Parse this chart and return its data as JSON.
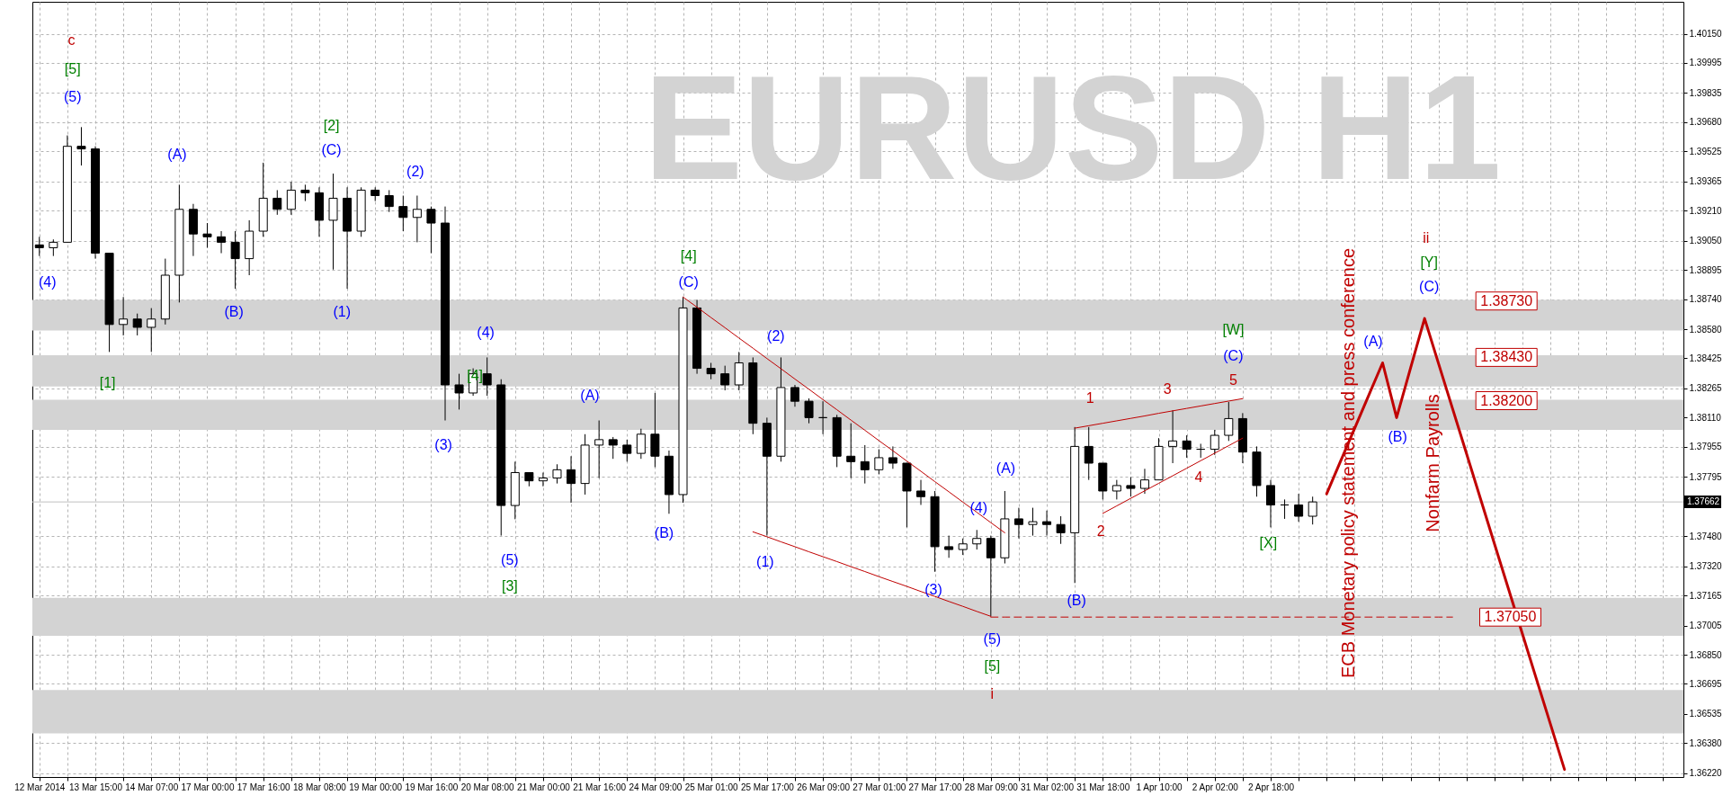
{
  "chart_data": {
    "type": "candlestick",
    "title": "EURUSD H1",
    "color": "#000000",
    "grid": true,
    "categories": [
      "12 Mar 2014",
      null,
      null,
      null,
      "13 Mar 15:00",
      null,
      null,
      null,
      "14 Mar 07:00",
      null,
      null,
      null,
      "17 Mar 00:00",
      null,
      null,
      null,
      "17 Mar 16:00",
      null,
      null,
      null,
      "18 Mar 08:00",
      null,
      null,
      null,
      "19 Mar 00:00",
      null,
      null,
      null,
      "19 Mar 16:00",
      null,
      null,
      null,
      "20 Mar 08:00",
      null,
      null,
      null,
      "21 Mar 00:00",
      null,
      null,
      null,
      "21 Mar 16:00",
      null,
      null,
      null,
      "24 Mar 09:00",
      null,
      null,
      null,
      "25 Mar 01:00",
      null,
      null,
      null,
      "25 Mar 17:00",
      null,
      null,
      null,
      "26 Mar 09:00",
      null,
      null,
      null,
      "27 Mar 01:00",
      null,
      null,
      null,
      "27 Mar 17:00",
      null,
      null,
      null,
      "28 Mar 09:00",
      null,
      null,
      null,
      "31 Mar 02:00",
      null,
      null,
      null,
      "31 Mar 18:00",
      null,
      null,
      null,
      "1 Apr 10:00",
      null,
      null,
      null,
      "2 Apr 02:00",
      null,
      null,
      null,
      "2 Apr 18:00",
      null,
      null,
      null,
      null,
      null,
      null,
      null,
      null,
      null,
      null,
      null,
      null,
      null,
      null,
      null,
      null,
      null,
      null,
      null,
      null,
      null,
      null,
      null,
      null,
      null,
      null,
      null,
      null,
      null
    ],
    "ohlc": [
      [
        1.39028,
        1.39071,
        1.38969,
        1.39013
      ],
      [
        1.39013,
        1.39057,
        1.38969,
        1.39042
      ],
      [
        1.39042,
        1.3961,
        1.39042,
        1.39552
      ],
      [
        1.39552,
        1.39654,
        1.3945,
        1.39538
      ],
      [
        1.39538,
        1.39552,
        1.38955,
        1.38984
      ],
      [
        1.38984,
        1.38984,
        1.38459,
        1.38605
      ],
      [
        1.38605,
        1.38751,
        1.38547,
        1.38634
      ],
      [
        1.38634,
        1.38663,
        1.38547,
        1.3859
      ],
      [
        1.3859,
        1.38692,
        1.38459,
        1.38634
      ],
      [
        1.38634,
        1.38955,
        1.38605,
        1.38867
      ],
      [
        1.38867,
        1.39348,
        1.38722,
        1.39217
      ],
      [
        1.39217,
        1.39246,
        1.38969,
        1.39086
      ],
      [
        1.39086,
        1.39144,
        1.39013,
        1.39071
      ],
      [
        1.39071,
        1.39101,
        1.38984,
        1.39042
      ],
      [
        1.39042,
        1.39101,
        1.38795,
        1.38955
      ],
      [
        1.38955,
        1.39159,
        1.38867,
        1.39101
      ],
      [
        1.39101,
        1.39465,
        1.39071,
        1.39276
      ],
      [
        1.39276,
        1.39319,
        1.39188,
        1.39217
      ],
      [
        1.39217,
        1.39363,
        1.39188,
        1.39319
      ],
      [
        1.39319,
        1.39348,
        1.39261,
        1.39305
      ],
      [
        1.39305,
        1.39334,
        1.39071,
        1.39159
      ],
      [
        1.39159,
        1.39407,
        1.38897,
        1.39276
      ],
      [
        1.39276,
        1.39334,
        1.38795,
        1.39101
      ],
      [
        1.39101,
        1.39334,
        1.39071,
        1.39319
      ],
      [
        1.39319,
        1.39334,
        1.39261,
        1.3929
      ],
      [
        1.3929,
        1.39319,
        1.39203,
        1.39232
      ],
      [
        1.39232,
        1.3929,
        1.39101,
        1.39174
      ],
      [
        1.39174,
        1.3929,
        1.39042,
        1.39217
      ],
      [
        1.39217,
        1.39232,
        1.38984,
        1.39144
      ],
      [
        1.39144,
        1.39232,
        1.38095,
        1.38284
      ],
      [
        1.38284,
        1.38343,
        1.38153,
        1.38241
      ],
      [
        1.38241,
        1.38372,
        1.38226,
        1.38343
      ],
      [
        1.38343,
        1.3843,
        1.38226,
        1.38284
      ],
      [
        1.38284,
        1.38314,
        1.37483,
        1.37643
      ],
      [
        1.37643,
        1.37876,
        1.3757,
        1.37818
      ],
      [
        1.37818,
        1.37818,
        1.37745,
        1.37774
      ],
      [
        1.37774,
        1.37818,
        1.37745,
        1.37789
      ],
      [
        1.37789,
        1.37862,
        1.3776,
        1.37833
      ],
      [
        1.37833,
        1.37905,
        1.37658,
        1.3776
      ],
      [
        1.3776,
        1.38022,
        1.37701,
        1.37964
      ],
      [
        1.37964,
        1.38095,
        1.37789,
        1.37993
      ],
      [
        1.37993,
        1.38007,
        1.37891,
        1.37964
      ],
      [
        1.37964,
        1.37993,
        1.37876,
        1.3792
      ],
      [
        1.3792,
        1.38051,
        1.37891,
        1.38022
      ],
      [
        1.38022,
        1.38241,
        1.37847,
        1.37905
      ],
      [
        1.37905,
        1.37935,
        1.37599,
        1.37701
      ],
      [
        1.37701,
        1.38751,
        1.37658,
        1.38693
      ],
      [
        1.38693,
        1.38736,
        1.38343,
        1.38372
      ],
      [
        1.38372,
        1.38401,
        1.38314,
        1.38343
      ],
      [
        1.38343,
        1.38386,
        1.38255,
        1.38284
      ],
      [
        1.38284,
        1.38459,
        1.38255,
        1.38401
      ],
      [
        1.38401,
        1.3843,
        1.38022,
        1.3808
      ],
      [
        1.3808,
        1.3811,
        1.37483,
        1.37905
      ],
      [
        1.37905,
        1.3843,
        1.37876,
        1.3827
      ],
      [
        1.3827,
        1.38284,
        1.38168,
        1.38197
      ],
      [
        1.38197,
        1.38212,
        1.3808,
        1.3811
      ],
      [
        1.3811,
        1.38197,
        1.38022,
        1.3811
      ],
      [
        1.3811,
        1.38125,
        1.37847,
        1.37905
      ],
      [
        1.37905,
        1.3808,
        1.37789,
        1.37876
      ],
      [
        1.37876,
        1.37964,
        1.3776,
        1.37833
      ],
      [
        1.37833,
        1.37942,
        1.37809,
        1.37897
      ],
      [
        1.37897,
        1.37957,
        1.37838,
        1.37868
      ],
      [
        1.37868,
        1.37868,
        1.37527,
        1.3772
      ],
      [
        1.3772,
        1.37779,
        1.37646,
        1.3769
      ],
      [
        1.3769,
        1.3772,
        1.37291,
        1.37424
      ],
      [
        1.37424,
        1.37483,
        1.37365,
        1.37409
      ],
      [
        1.37409,
        1.37468,
        1.3738,
        1.37439
      ],
      [
        1.37439,
        1.37513,
        1.37409,
        1.37468
      ],
      [
        1.37468,
        1.37483,
        1.37054,
        1.37365
      ],
      [
        1.37365,
        1.3772,
        1.37335,
        1.37572
      ],
      [
        1.37572,
        1.37631,
        1.37468,
        1.37542
      ],
      [
        1.37542,
        1.37631,
        1.37483,
        1.37557
      ],
      [
        1.37557,
        1.37616,
        1.37483,
        1.37542
      ],
      [
        1.37542,
        1.37586,
        1.37439,
        1.37498
      ],
      [
        1.37498,
        1.3806,
        1.37231,
        1.37957
      ],
      [
        1.37957,
        1.3806,
        1.37779,
        1.37868
      ],
      [
        1.37868,
        1.37868,
        1.37675,
        1.3772
      ],
      [
        1.3772,
        1.37779,
        1.37675,
        1.37749
      ],
      [
        1.37749,
        1.37794,
        1.3769,
        1.37734
      ],
      [
        1.37734,
        1.37838,
        1.37705,
        1.37779
      ],
      [
        1.37779,
        1.38001,
        1.37779,
        1.37957
      ],
      [
        1.37957,
        1.38149,
        1.37868,
        1.37986
      ],
      [
        1.37986,
        1.38016,
        1.37897,
        1.37942
      ],
      [
        1.37942,
        1.37971,
        1.37897,
        1.37942
      ],
      [
        1.37942,
        1.38045,
        1.37912,
        1.38016
      ],
      [
        1.38016,
        1.38193,
        1.37986,
        1.38105
      ],
      [
        1.38105,
        1.38134,
        1.37868,
        1.37927
      ],
      [
        1.37927,
        1.37957,
        1.3769,
        1.37749
      ],
      [
        1.37749,
        1.37779,
        1.37527,
        1.37646
      ],
      [
        1.37646,
        1.37675,
        1.37572,
        1.37646
      ],
      [
        1.37646,
        1.37705,
        1.37557,
        1.37586
      ],
      [
        1.37586,
        1.3769,
        1.37542,
        1.37662
      ],
      null,
      null,
      null,
      null,
      null,
      null,
      null,
      null,
      null,
      null,
      null,
      null,
      null,
      null,
      null,
      null,
      null,
      null,
      null,
      null,
      null,
      null,
      null,
      null,
      null,
      null
    ],
    "series": [
      {
        "type": "line",
        "color": "#c00000",
        "values": [
          null,
          null,
          null,
          null,
          null,
          null,
          null,
          null,
          null,
          null,
          null,
          null,
          null,
          null,
          null,
          null,
          null,
          null,
          null,
          null,
          null,
          null,
          null,
          null,
          null,
          null,
          null,
          null,
          null,
          null,
          null,
          null,
          null,
          null,
          null,
          null,
          null,
          null,
          null,
          null,
          null,
          null,
          null,
          null,
          null,
          null,
          null,
          null,
          null,
          null,
          null,
          null,
          null,
          null,
          null,
          null,
          null,
          null,
          null,
          null,
          null,
          null,
          null,
          null,
          null,
          null,
          null,
          null,
          null,
          null,
          null,
          null,
          null,
          null,
          null,
          null,
          null,
          null,
          null,
          null,
          null,
          null,
          null,
          null,
          null,
          null,
          null,
          null,
          null,
          null,
          null,
          null,
          1.37705,
          1.37879,
          1.38053,
          1.38227,
          1.38401,
          1.3811,
          1.38374,
          1.38637,
          1.38397,
          1.38158,
          1.37918,
          1.37678,
          1.37438,
          1.37199,
          1.36959,
          1.36719,
          1.3648,
          1.3624,
          null,
          null,
          null,
          null,
          null,
          null,
          null,
          null
        ]
      },
      {
        "type": "line",
        "color": "#c00000",
        "values": [
          null,
          null,
          null,
          null,
          null,
          null,
          null,
          null,
          null,
          null,
          null,
          null,
          null,
          null,
          null,
          null,
          null,
          null,
          null,
          null,
          null,
          null,
          null,
          null,
          null,
          null,
          null,
          null,
          null,
          null,
          null,
          null,
          null,
          null,
          null,
          null,
          null,
          null,
          null,
          null,
          null,
          null,
          null,
          null,
          null,
          null,
          1.38751,
          1.38697,
          1.38642,
          1.38588,
          1.38533,
          1.38479,
          1.38424,
          1.3837,
          1.38315,
          1.38261,
          1.38206,
          1.38152,
          1.38097,
          1.38043,
          1.37988,
          1.37934,
          1.37879,
          1.37825,
          1.3777,
          1.37716,
          1.37661,
          1.37607,
          1.37552,
          1.37498,
          null,
          null,
          null,
          null,
          null,
          null,
          null,
          null,
          null,
          null,
          null,
          null,
          null,
          null,
          null,
          null,
          null,
          null,
          null,
          null,
          null,
          null,
          null,
          null,
          null,
          null,
          null,
          null,
          null,
          null,
          null,
          null,
          null,
          null,
          null,
          null,
          null,
          null,
          null,
          null,
          null,
          null,
          null,
          null,
          null,
          null,
          null,
          null
        ]
      },
      {
        "type": "line",
        "color": "#c00000",
        "values": [
          null,
          null,
          null,
          null,
          null,
          null,
          null,
          null,
          null,
          null,
          null,
          null,
          null,
          null,
          null,
          null,
          null,
          null,
          null,
          null,
          null,
          null,
          null,
          null,
          null,
          null,
          null,
          null,
          null,
          null,
          null,
          null,
          null,
          null,
          null,
          null,
          null,
          null,
          null,
          null,
          null,
          null,
          null,
          null,
          null,
          null,
          null,
          null,
          null,
          null,
          null,
          1.37503,
          1.37477,
          1.3745,
          1.37424,
          1.37397,
          1.37371,
          1.37345,
          1.37318,
          1.37292,
          1.37265,
          1.37239,
          1.37213,
          1.37186,
          1.3716,
          1.37133,
          1.37107,
          1.3708,
          1.37054,
          null,
          null,
          null,
          null,
          null,
          null,
          null,
          null,
          null,
          null,
          null,
          null,
          null,
          null,
          null,
          null,
          null,
          null,
          null,
          null,
          null,
          null,
          null,
          null,
          null,
          null,
          null,
          null,
          null,
          null,
          null,
          null,
          null,
          null,
          null,
          null,
          null,
          null,
          null,
          null,
          null,
          null,
          null,
          null,
          null,
          null,
          null,
          null,
          null
        ]
      },
      {
        "type": "line",
        "color": "#c00000",
        "values": [
          null,
          null,
          null,
          null,
          null,
          null,
          null,
          null,
          null,
          null,
          null,
          null,
          null,
          null,
          null,
          null,
          null,
          null,
          null,
          null,
          null,
          null,
          null,
          null,
          null,
          null,
          null,
          null,
          null,
          null,
          null,
          null,
          null,
          null,
          null,
          null,
          null,
          null,
          null,
          null,
          null,
          null,
          null,
          null,
          null,
          null,
          null,
          null,
          null,
          null,
          null,
          null,
          null,
          null,
          null,
          null,
          null,
          null,
          null,
          null,
          null,
          null,
          null,
          null,
          null,
          null,
          null,
          null,
          null,
          null,
          null,
          null,
          null,
          null,
          1.38054,
          1.38067,
          1.3808,
          1.38093,
          1.38106,
          1.38119,
          1.38133,
          1.38146,
          1.38159,
          1.38172,
          1.38185,
          1.38198,
          1.38211,
          null,
          null,
          null,
          null,
          null,
          null,
          null,
          null,
          null,
          null,
          null,
          null,
          null,
          null,
          null,
          null,
          null,
          null,
          null,
          null,
          null,
          null,
          null,
          null,
          null,
          null,
          null,
          null,
          null,
          null,
          null
        ]
      },
      {
        "type": "line",
        "color": "#c00000",
        "values": [
          null,
          null,
          null,
          null,
          null,
          null,
          null,
          null,
          null,
          null,
          null,
          null,
          null,
          null,
          null,
          null,
          null,
          null,
          null,
          null,
          null,
          null,
          null,
          null,
          null,
          null,
          null,
          null,
          null,
          null,
          null,
          null,
          null,
          null,
          null,
          null,
          null,
          null,
          null,
          null,
          null,
          null,
          null,
          null,
          null,
          null,
          null,
          null,
          null,
          null,
          null,
          null,
          null,
          null,
          null,
          null,
          null,
          null,
          null,
          null,
          null,
          null,
          null,
          null,
          null,
          null,
          null,
          null,
          null,
          null,
          null,
          null,
          null,
          null,
          null,
          null,
          1.37601,
          1.37641,
          1.37681,
          1.37721,
          1.37761,
          1.37801,
          1.37841,
          1.37881,
          1.37921,
          1.37961,
          1.38001,
          null,
          null,
          null,
          null,
          null,
          null,
          null,
          null,
          null,
          null,
          null,
          null,
          null,
          null,
          null,
          null,
          null,
          null,
          null,
          null,
          null,
          null,
          null,
          null,
          null,
          null,
          null,
          null,
          null,
          null,
          null
        ]
      },
      {
        "type": "line",
        "color": "#c00000",
        "line_style": "dashed",
        "values": [
          null,
          null,
          null,
          null,
          null,
          null,
          null,
          null,
          null,
          null,
          null,
          null,
          null,
          null,
          null,
          null,
          null,
          null,
          null,
          null,
          null,
          null,
          null,
          null,
          null,
          null,
          null,
          null,
          null,
          null,
          null,
          null,
          null,
          null,
          null,
          null,
          null,
          null,
          null,
          null,
          null,
          null,
          null,
          null,
          null,
          null,
          null,
          null,
          null,
          null,
          null,
          null,
          null,
          null,
          null,
          null,
          null,
          null,
          null,
          null,
          null,
          null,
          null,
          null,
          null,
          null,
          null,
          null,
          1.3705,
          1.3705,
          1.3705,
          1.3705,
          1.3705,
          1.3705,
          1.3705,
          1.3705,
          1.3705,
          1.3705,
          1.3705,
          1.3705,
          1.3705,
          1.3705,
          1.3705,
          1.3705,
          1.3705,
          1.3705,
          1.3705,
          1.3705,
          1.3705,
          1.3705,
          1.3705,
          1.3705,
          1.3705,
          1.3705,
          1.3705,
          1.3705,
          1.3705,
          1.3705,
          1.3705,
          1.3705,
          1.3705,
          1.3705,
          null,
          null,
          null,
          null,
          null,
          null,
          null,
          null,
          null,
          null,
          null,
          null,
          null,
          null,
          null,
          null
        ]
      }
    ],
    "bands": [
      {
        "axis": "y",
        "from": 1.38573,
        "to": 1.38735,
        "color": "#d3d3d3"
      },
      {
        "axis": "y",
        "from": 1.38276,
        "to": 1.38442,
        "color": "#d3d3d3"
      },
      {
        "axis": "y",
        "from": 1.38045,
        "to": 1.38205,
        "color": "#d3d3d3"
      },
      {
        "axis": "y",
        "from": 1.3695,
        "to": 1.37152,
        "color": "#d3d3d3"
      },
      {
        "axis": "y",
        "from": 1.36432,
        "to": 1.36663,
        "color": "#d3d3d3"
      }
    ],
    "ref_lines": [
      {
        "axis": "y",
        "value": 1.37662,
        "label": "1.37662",
        "color": "#c0c0c0"
      }
    ],
    "annotations": [
      "c",
      "[5]",
      "(5)",
      "(4)",
      "(A)",
      "[1]",
      "(B)",
      "[2]",
      "(C)",
      "(1)",
      "(2)",
      "(4)",
      "[4]",
      "(3)",
      "(5)",
      "[3]",
      "(A)",
      "(B)",
      "[4]",
      "(C)",
      "(2)",
      "(1)",
      "(3)",
      "(4)",
      "(A)",
      "(5)",
      "[5]",
      "i",
      "(B)",
      "1",
      "2",
      "3",
      "4",
      "5",
      "(C)",
      "[W]",
      "[X]",
      "(A)",
      "(B)",
      "(C)",
      "[Y]",
      "ii",
      "ECB Monetary policy statement and press conference",
      "Nonfarm  Payrolls",
      "1.38730",
      "1.38430",
      "1.38200",
      "1.37050"
    ],
    "ylim": [
      1.362,
      1.4032
    ],
    "yticks": [
      {
        "value": 1.4015,
        "label": "1.40150"
      },
      {
        "value": 1.39995,
        "label": "1.39995"
      },
      {
        "value": 1.39835,
        "label": "1.39835"
      },
      {
        "value": 1.3968,
        "label": "1.39680"
      },
      {
        "value": 1.39525,
        "label": "1.39525"
      },
      {
        "value": 1.39365,
        "label": "1.39365"
      },
      {
        "value": 1.3921,
        "label": "1.39210"
      },
      {
        "value": 1.3905,
        "label": "1.39050"
      },
      {
        "value": 1.38895,
        "label": "1.38895"
      },
      {
        "value": 1.3874,
        "label": "1.38740"
      },
      {
        "value": 1.3858,
        "label": "1.38580"
      },
      {
        "value": 1.38425,
        "label": "1.38425"
      },
      {
        "value": 1.38265,
        "label": "1.38265"
      },
      {
        "value": 1.3811,
        "label": "1.38110"
      },
      {
        "value": 1.37955,
        "label": "1.37955"
      },
      {
        "value": 1.37795,
        "label": "1.37795"
      },
      {
        "value": 1.3748,
        "label": "1.37480"
      },
      {
        "value": 1.3732,
        "label": "1.37320"
      },
      {
        "value": 1.37165,
        "label": "1.37165"
      },
      {
        "value": 1.37005,
        "label": "1.37005"
      },
      {
        "value": 1.3685,
        "label": "1.36850"
      },
      {
        "value": 1.36695,
        "label": "1.36695"
      },
      {
        "value": 1.36535,
        "label": "1.36535"
      },
      {
        "value": 1.3638,
        "label": "1.36380"
      },
      {
        "value": 1.3622,
        "label": "1.36220"
      }
    ]
  }
}
